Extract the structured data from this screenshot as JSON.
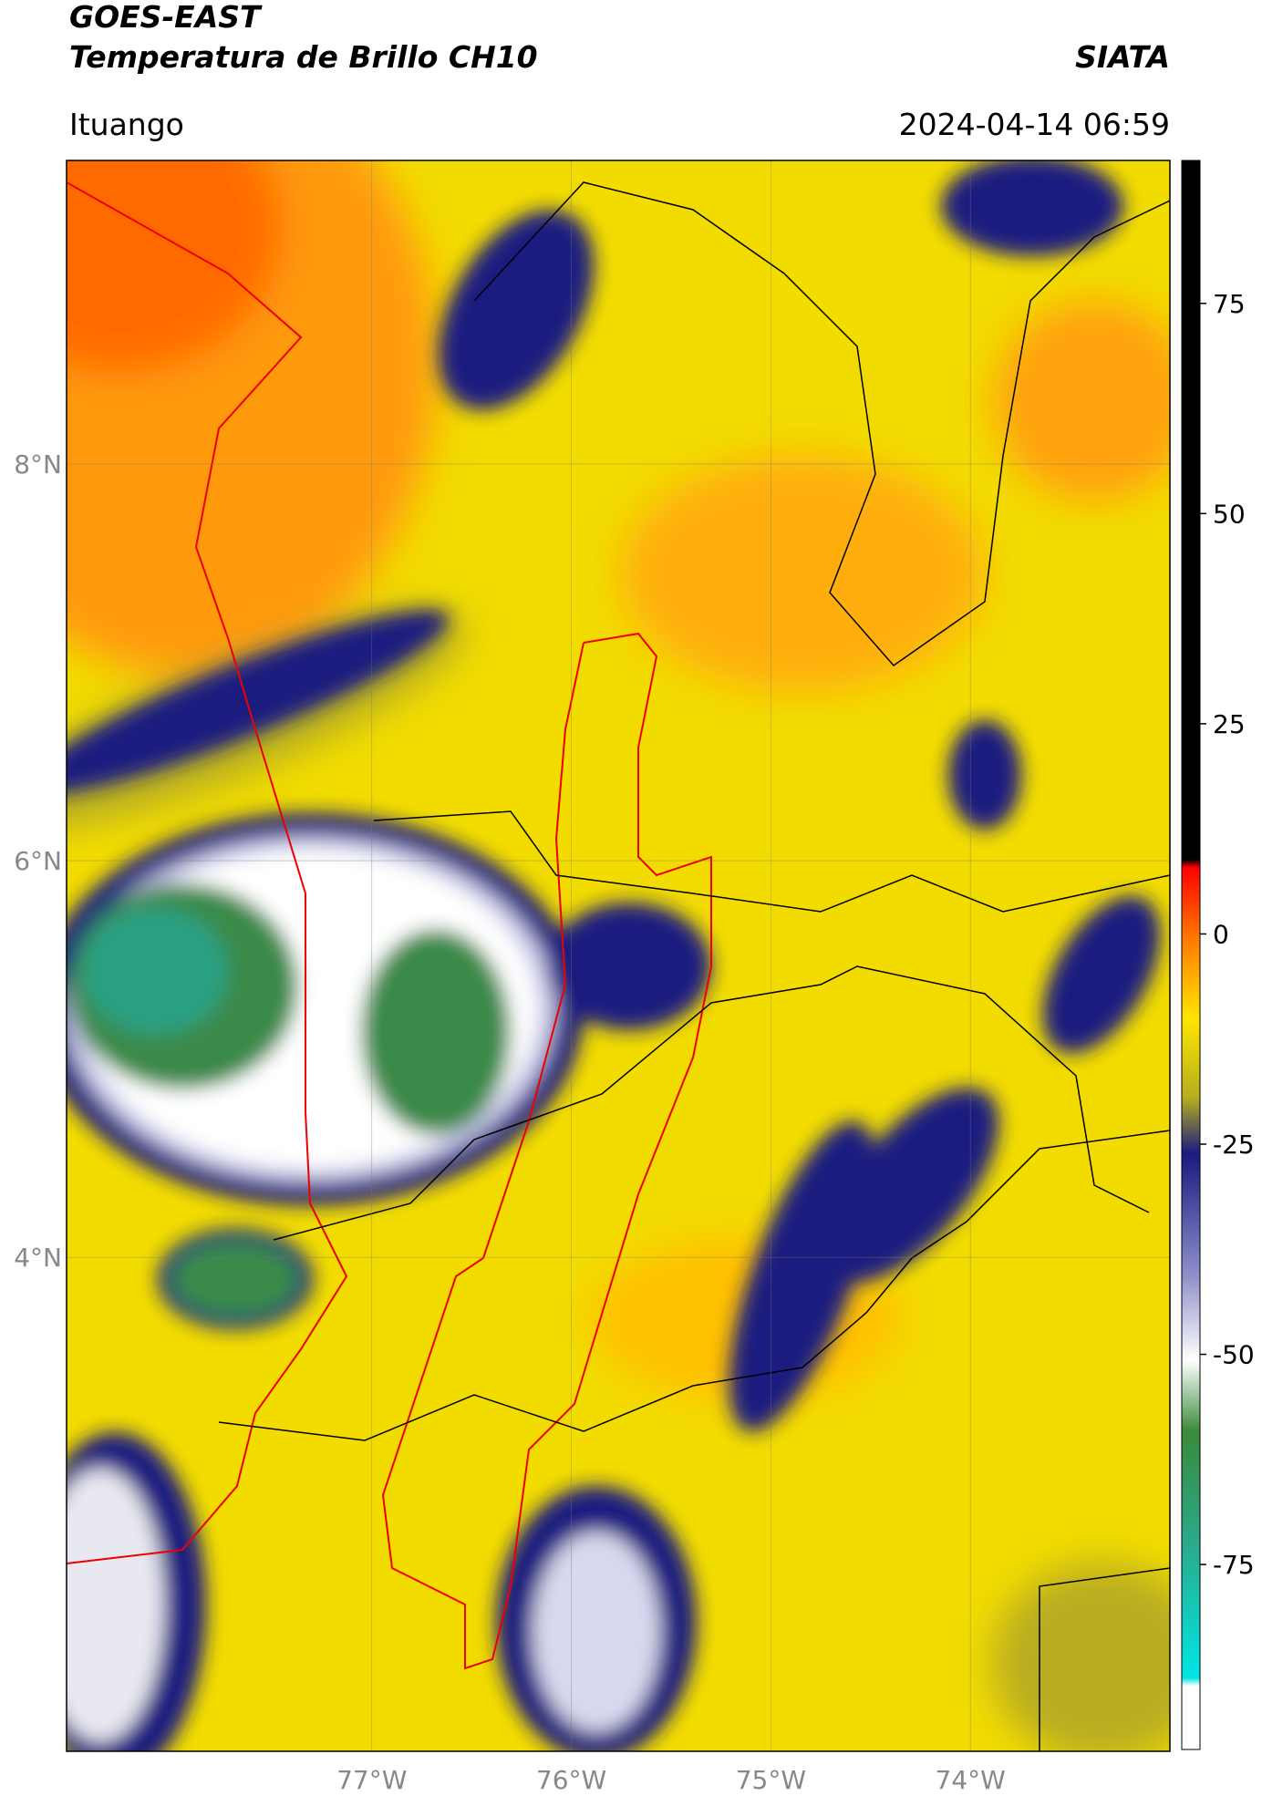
{
  "header": {
    "satellite": "GOES-EAST",
    "product": "Temperatura de Brillo CH10",
    "source": "SIATA",
    "location": "Ituango",
    "datetime": "2024-04-14 06:59"
  },
  "map": {
    "xlim": [
      -78.53,
      -73.0
    ],
    "ylim": [
      1.51,
      9.53
    ],
    "xticks": [
      {
        "value": -77,
        "label": "77°W"
      },
      {
        "value": -76,
        "label": "76°W"
      },
      {
        "value": -75,
        "label": "75°W"
      },
      {
        "value": -74,
        "label": "74°W"
      }
    ],
    "yticks": [
      {
        "value": 8,
        "label": "8°N"
      },
      {
        "value": 6,
        "label": "6°N"
      },
      {
        "value": 4,
        "label": "4°N"
      }
    ],
    "grid": true
  },
  "colorbar": {
    "lim": [
      -97,
      92
    ],
    "ticks": [
      75,
      50,
      25,
      0,
      -25,
      -50,
      -75
    ]
  }
}
